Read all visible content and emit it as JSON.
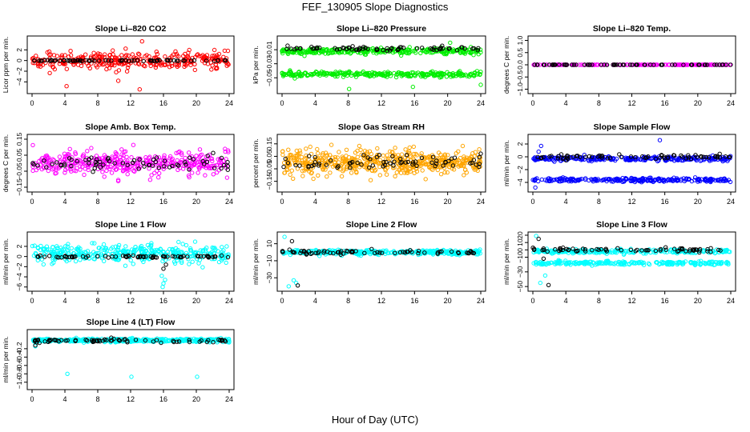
{
  "figure": {
    "title": "FEF_130905  Slope Diagnostics",
    "xlabel": "Hour of Day (UTC)"
  },
  "chart_data": [
    {
      "type": "scatter",
      "title": "Slope Li–820 CO2",
      "ylabel": "Licor ppm per min.",
      "xlim": [
        0,
        24
      ],
      "ylim": [
        -5.6,
        4
      ],
      "xticks": [
        0,
        4,
        8,
        12,
        16,
        20,
        24
      ],
      "yticks": [
        -4,
        -2,
        0,
        2
      ],
      "series": [
        {
          "color": "#ff0000",
          "bands": [
            {
              "center": 0,
              "spread": 1.6,
              "n": 320,
              "outliers": [
                [
                  10.5,
                  -3.8
                ],
                [
                  13.1,
                  -5.4
                ],
                [
                  13.4,
                  3.6
                ],
                [
                  4.2,
                  -4.8
                ]
              ]
            }
          ]
        },
        {
          "color": "#000000",
          "bands": [
            {
              "center": 0,
              "spread": 0.1,
              "n": 70
            }
          ]
        }
      ]
    },
    {
      "type": "scatter",
      "title": "Slope Li–820 Pressure",
      "ylabel": "kPa per min.",
      "xlim": [
        0,
        24
      ],
      "ylim": [
        -0.068,
        0.005
      ],
      "xticks": [
        0,
        4,
        8,
        12,
        16,
        20,
        24
      ],
      "yticks": [
        -0.05,
        -0.03,
        -0.01
      ],
      "series": [
        {
          "color": "#00ee00",
          "bands": [
            {
              "center": -0.012,
              "spread": 0.004,
              "n": 300
            },
            {
              "center": -0.045,
              "spread": 0.004,
              "n": 280
            }
          ],
          "outliers": [
            [
              8.1,
              -0.066
            ],
            [
              15.8,
              -0.063
            ],
            [
              24,
              -0.06
            ],
            [
              20.3,
              0.0
            ]
          ]
        },
        {
          "color": "#000000",
          "bands": [
            {
              "center": -0.008,
              "spread": 0.003,
              "n": 70
            }
          ]
        }
      ]
    },
    {
      "type": "scatter",
      "title": "Slope Li–820 Temp.",
      "ylabel": "degrees C per min.",
      "xlim": [
        0,
        24
      ],
      "ylim": [
        -1.05,
        1.05
      ],
      "xticks": [
        0,
        4,
        8,
        12,
        16,
        20,
        24
      ],
      "yticks": [
        -1.0,
        -0.5,
        0.0,
        0.5,
        1.0
      ],
      "series": [
        {
          "color": "#ff00ff",
          "bands": [
            {
              "center": 0,
              "spread": 0.004,
              "n": 200
            }
          ]
        },
        {
          "color": "#000000",
          "bands": [
            {
              "center": 0,
              "spread": 0.004,
              "n": 70
            }
          ]
        }
      ]
    },
    {
      "type": "scatter",
      "title": "Slope Amb. Box Temp.",
      "ylabel": "degrees C per min.",
      "xlim": [
        0,
        24
      ],
      "ylim": [
        -0.16,
        0.16
      ],
      "xticks": [
        0,
        4,
        8,
        12,
        16,
        20,
        24
      ],
      "yticks": [
        -0.15,
        -0.05,
        0.05,
        0.15
      ],
      "series": [
        {
          "color": "#ff00ff",
          "bands": [
            {
              "center": 0,
              "spread": 0.075,
              "n": 380
            }
          ]
        },
        {
          "color": "#000000",
          "bands": [
            {
              "center": 0,
              "spread": 0.04,
              "n": 70
            }
          ]
        }
      ]
    },
    {
      "type": "scatter",
      "title": "Slope Gas Stream RH",
      "ylabel": "percent per min.",
      "xlim": [
        0,
        24
      ],
      "ylim": [
        -0.21,
        0.2
      ],
      "xticks": [
        0,
        4,
        8,
        12,
        16,
        20,
        24
      ],
      "yticks": [
        -0.15,
        -0.05,
        0.05,
        0.15
      ],
      "series": [
        {
          "color": "#ffa500",
          "bands": [
            {
              "center": 0,
              "spread": 0.1,
              "n": 520
            }
          ]
        },
        {
          "color": "#000000",
          "bands": [
            {
              "center": 0,
              "spread": 0.06,
              "n": 70
            }
          ]
        }
      ]
    },
    {
      "type": "scatter",
      "title": "Slope Sample Flow",
      "ylabel": "ml/min per min.",
      "xlim": [
        0,
        24
      ],
      "ylim": [
        -5,
        3
      ],
      "xticks": [
        0,
        4,
        8,
        12,
        16,
        20,
        24
      ],
      "yticks": [
        -4,
        -2,
        0,
        2
      ],
      "series": [
        {
          "color": "#0000ff",
          "bands": [
            {
              "center": -0.3,
              "spread": 0.35,
              "n": 260
            },
            {
              "center": -3.6,
              "spread": 0.3,
              "n": 240
            }
          ],
          "outliers": [
            [
              0.3,
              -4.8
            ],
            [
              1.0,
              1.7
            ],
            [
              15.4,
              2.6
            ],
            [
              0.7,
              0.8
            ]
          ]
        },
        {
          "color": "#000000",
          "bands": [
            {
              "center": 0,
              "spread": 0.35,
              "n": 70
            }
          ]
        }
      ]
    },
    {
      "type": "scatter",
      "title": "Slope Line 1 Flow",
      "ylabel": "ml/min per min.",
      "xlim": [
        0,
        24
      ],
      "ylim": [
        -6.2,
        4.2
      ],
      "xticks": [
        0,
        4,
        8,
        12,
        16,
        20,
        24
      ],
      "yticks": [
        -6,
        -4,
        -2,
        0,
        2
      ],
      "series": [
        {
          "color": "#00ffff",
          "bands": [
            {
              "center": 0.6,
              "spread": 1.8,
              "n": 360
            }
          ],
          "outliers": [
            [
              15.9,
              -6.0
            ],
            [
              16.0,
              -5.3
            ],
            [
              16.2,
              -4.6
            ],
            [
              15.8,
              -3.8
            ]
          ]
        },
        {
          "color": "#000000",
          "bands": [
            {
              "center": 0,
              "spread": 0.25,
              "n": 70
            }
          ],
          "outliers": [
            [
              16.0,
              -2.4
            ],
            [
              16.3,
              -1.6
            ]
          ]
        }
      ]
    },
    {
      "type": "scatter",
      "title": "Slope Line 2 Flow",
      "ylabel": "ml/min per min.",
      "xlim": [
        0,
        24
      ],
      "ylim": [
        -42,
        20
      ],
      "xticks": [
        0,
        4,
        8,
        12,
        16,
        20,
        24
      ],
      "yticks": [
        -30,
        -10,
        10
      ],
      "series": [
        {
          "color": "#00ffff",
          "bands": [
            {
              "center": 0,
              "spread": 2.5,
              "n": 320
            }
          ],
          "outliers": [
            [
              0.3,
              18
            ],
            [
              1.0,
              -3
            ],
            [
              1.4,
              -33
            ],
            [
              1.7,
              -36
            ],
            [
              0.8,
              -40
            ]
          ]
        },
        {
          "color": "#000000",
          "bands": [
            {
              "center": 0,
              "spread": 2,
              "n": 70
            }
          ],
          "outliers": [
            [
              1.2,
              13
            ],
            [
              1.9,
              -39
            ],
            [
              0.9,
              3
            ]
          ]
        }
      ]
    },
    {
      "type": "scatter",
      "title": "Slope Line 3 Flow",
      "ylabel": "ml/min per min.",
      "xlim": [
        0,
        24
      ],
      "ylim": [
        -52,
        20
      ],
      "xticks": [
        0,
        4,
        8,
        12,
        16,
        20,
        24
      ],
      "yticks": [
        -50,
        -30,
        -10,
        0,
        10,
        20
      ],
      "series": [
        {
          "color": "#00ffff",
          "bands": [
            {
              "center": -2,
              "spread": 3,
              "n": 240
            },
            {
              "center": -18,
              "spread": 2.5,
              "n": 240
            }
          ],
          "outliers": [
            [
              0.4,
              19
            ],
            [
              0.9,
              -45
            ],
            [
              1.5,
              -35
            ]
          ]
        },
        {
          "color": "#000000",
          "bands": [
            {
              "center": 0,
              "spread": 3,
              "n": 70
            }
          ],
          "outliers": [
            [
              0.7,
              15
            ],
            [
              1.3,
              -12
            ],
            [
              1.9,
              -48
            ]
          ]
        }
      ]
    },
    {
      "type": "scatter",
      "title": "Slope Line 4 (LT) Flow",
      "ylabel": "ml/min per min.",
      "xlim": [
        0,
        24
      ],
      "ylim": [
        -1.1,
        0.18
      ],
      "xticks": [
        0,
        4,
        8,
        12,
        16,
        20,
        24
      ],
      "yticks": [
        -1.0,
        -0.8,
        -0.6,
        -0.4,
        -0.2
      ],
      "series": [
        {
          "color": "#00ffff",
          "bands": [
            {
              "center": 0,
              "spread": 0.04,
              "n": 400
            }
          ],
          "outliers": [
            [
              4.3,
              -0.8
            ],
            [
              12.1,
              -0.87
            ],
            [
              20.1,
              -0.87
            ],
            [
              0.4,
              -0.14
            ]
          ]
        },
        {
          "color": "#000000",
          "bands": [
            {
              "center": -0.01,
              "spread": 0.04,
              "n": 70
            }
          ],
          "outliers": [
            [
              0.4,
              -0.12
            ],
            [
              0.9,
              -0.06
            ]
          ]
        }
      ]
    }
  ]
}
